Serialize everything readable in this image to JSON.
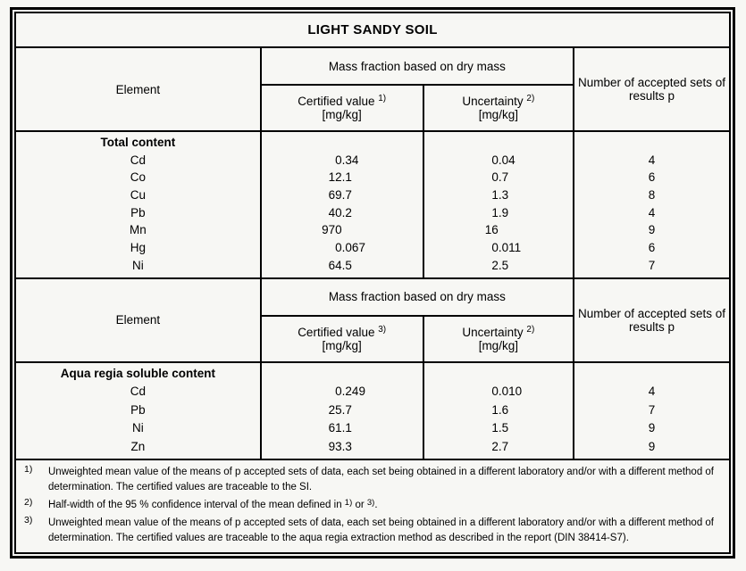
{
  "page": {
    "background": "#f7f7f4",
    "border_color": "#000000",
    "text_color": "#000000"
  },
  "title": "LIGHT SANDY SOIL",
  "headers": {
    "element": "Element",
    "mass_fraction": "Mass fraction based on dry mass",
    "certified_value": "Certified value",
    "uncertainty": "Uncertainty",
    "unit": "[mg/kg]",
    "accepted_sets": "Number of accepted sets of results p"
  },
  "sections": [
    {
      "group_label": "Total content",
      "certified_note": "1)",
      "uncertainty_note": "2)",
      "rows": [
        {
          "element": "Cd",
          "certified": "0.34",
          "uncertainty": "0.04",
          "p": "4"
        },
        {
          "element": "Co",
          "certified": "12.1",
          "uncertainty": "0.7",
          "p": "6"
        },
        {
          "element": "Cu",
          "certified": "69.7",
          "uncertainty": "1.3",
          "p": "8"
        },
        {
          "element": "Pb",
          "certified": "40.2",
          "uncertainty": "1.9",
          "p": "4"
        },
        {
          "element": "Mn",
          "certified": "970",
          "uncertainty": "16",
          "p": "9"
        },
        {
          "element": "Hg",
          "certified": "0.067",
          "uncertainty": "0.011",
          "p": "6"
        },
        {
          "element": "Ni",
          "certified": "64.5",
          "uncertainty": "2.5",
          "p": "7"
        }
      ]
    },
    {
      "group_label": "Aqua regia soluble content",
      "certified_note": "3)",
      "uncertainty_note": "2)",
      "rows": [
        {
          "element": "Cd",
          "certified": "0.249",
          "uncertainty": "0.010",
          "p": "4"
        },
        {
          "element": "Pb",
          "certified": "25.7",
          "uncertainty": "1.6",
          "p": "7"
        },
        {
          "element": "Ni",
          "certified": "61.1",
          "uncertainty": "1.5",
          "p": "9"
        },
        {
          "element": "Zn",
          "certified": "93.3",
          "uncertainty": "2.7",
          "p": "9"
        }
      ]
    }
  ],
  "footnotes": [
    {
      "marker": "1)",
      "parts": [
        {
          "text": "Unweighted mean value of the means of p accepted sets of data, each set being obtained in a different laboratory and/or with a different method of determination. The certified values are traceable to the SI."
        }
      ]
    },
    {
      "marker": "2)",
      "parts": [
        {
          "text": "Half-width of the 95 % confidence interval of the mean defined in "
        },
        {
          "sup": "1)"
        },
        {
          "text": " or "
        },
        {
          "sup": "3)"
        },
        {
          "text": "."
        }
      ]
    },
    {
      "marker": "3)",
      "parts": [
        {
          "text": "Unweighted mean value of the means of p accepted sets of data, each set being obtained in a different laboratory and/or with a different method of determination. The certified values are traceable to the aqua regia extraction method as described in the report (DIN 38414-S7)."
        }
      ]
    }
  ]
}
